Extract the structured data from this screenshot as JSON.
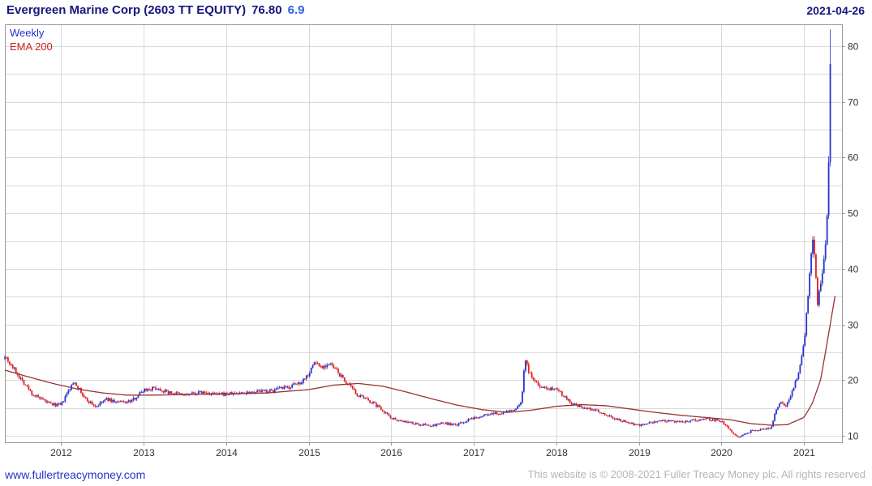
{
  "header": {
    "name": "Evergreen Marine Corp (2603 TT EQUITY)",
    "price": "76.80",
    "change": "6.9",
    "date": "2021-04-26"
  },
  "legend": {
    "frequency": "Weekly",
    "overlay": "EMA 200"
  },
  "footer": {
    "link": "www.fullertreacymoney.com",
    "copyright": "This website is © 2008-2021 Fuller Treacy Money plc. All rights reserved"
  },
  "colors": {
    "title": "#16167e",
    "change": "#2f5fe0",
    "up": "#2633cc",
    "down": "#e01f1f",
    "ema": "#993333",
    "grid": "#d9d9d9",
    "border": "#9a9a9a",
    "axis_text": "#333333",
    "link": "#2233cc",
    "copyright": "#b5b5b5"
  },
  "chart_data": {
    "type": "candlestick",
    "title": "Evergreen Marine Corp (2603 TT EQUITY)",
    "frequency": "Weekly",
    "overlay": "EMA 200",
    "last_price": 76.8,
    "change": 6.9,
    "as_of": "2021-04-26",
    "x_ticks": [
      2012,
      2013,
      2014,
      2015,
      2016,
      2017,
      2018,
      2019,
      2020,
      2021
    ],
    "y_ticks": [
      10,
      20,
      30,
      40,
      50,
      60,
      70,
      80
    ],
    "grid_step": 5,
    "x_range": [
      2011.318,
      2021.46
    ],
    "y_axis_side": "right",
    "high_watermark": 83,
    "low_watermark": 9.5,
    "weekly_close_keyframes": [
      [
        2011.318,
        24.5
      ],
      [
        2011.38,
        23.0
      ],
      [
        2011.5,
        20.5
      ],
      [
        2011.65,
        17.5
      ],
      [
        2011.78,
        16.3
      ],
      [
        2011.9,
        15.6
      ],
      [
        2012.0,
        15.5
      ],
      [
        2012.08,
        17.8
      ],
      [
        2012.16,
        19.8
      ],
      [
        2012.28,
        16.8
      ],
      [
        2012.42,
        15.2
      ],
      [
        2012.55,
        16.6
      ],
      [
        2012.68,
        16.0
      ],
      [
        2012.85,
        16.2
      ],
      [
        2013.0,
        18.3
      ],
      [
        2013.15,
        18.6
      ],
      [
        2013.3,
        17.8
      ],
      [
        2013.5,
        17.3
      ],
      [
        2013.7,
        17.8
      ],
      [
        2013.9,
        17.4
      ],
      [
        2014.1,
        17.6
      ],
      [
        2014.3,
        17.9
      ],
      [
        2014.55,
        18.1
      ],
      [
        2014.75,
        18.7
      ],
      [
        2014.9,
        19.6
      ],
      [
        2015.0,
        21.2
      ],
      [
        2015.07,
        23.3
      ],
      [
        2015.15,
        22.4
      ],
      [
        2015.25,
        22.9
      ],
      [
        2015.33,
        21.8
      ],
      [
        2015.45,
        19.6
      ],
      [
        2015.6,
        17.2
      ],
      [
        2015.75,
        16.2
      ],
      [
        2015.9,
        14.6
      ],
      [
        2016.0,
        13.2
      ],
      [
        2016.15,
        12.6
      ],
      [
        2016.3,
        12.1
      ],
      [
        2016.5,
        11.8
      ],
      [
        2016.62,
        12.3
      ],
      [
        2016.78,
        11.9
      ],
      [
        2016.95,
        12.9
      ],
      [
        2017.1,
        13.7
      ],
      [
        2017.25,
        13.9
      ],
      [
        2017.4,
        14.3
      ],
      [
        2017.52,
        14.9
      ],
      [
        2017.58,
        16.5
      ],
      [
        2017.62,
        24.2
      ],
      [
        2017.67,
        21.3
      ],
      [
        2017.73,
        19.8
      ],
      [
        2017.82,
        18.8
      ],
      [
        2017.92,
        18.5
      ],
      [
        2018.0,
        18.7
      ],
      [
        2018.08,
        17.3
      ],
      [
        2018.2,
        15.6
      ],
      [
        2018.35,
        14.9
      ],
      [
        2018.5,
        14.6
      ],
      [
        2018.62,
        13.6
      ],
      [
        2018.75,
        12.9
      ],
      [
        2018.9,
        12.3
      ],
      [
        2019.0,
        11.9
      ],
      [
        2019.15,
        12.3
      ],
      [
        2019.3,
        12.7
      ],
      [
        2019.5,
        12.4
      ],
      [
        2019.65,
        12.8
      ],
      [
        2019.8,
        13.1
      ],
      [
        2019.95,
        12.8
      ],
      [
        2020.05,
        12.1
      ],
      [
        2020.16,
        10.2
      ],
      [
        2020.22,
        9.8
      ],
      [
        2020.35,
        10.8
      ],
      [
        2020.5,
        11.2
      ],
      [
        2020.6,
        11.5
      ],
      [
        2020.66,
        14.6
      ],
      [
        2020.72,
        15.9
      ],
      [
        2020.78,
        15.3
      ],
      [
        2020.85,
        17.6
      ],
      [
        2020.92,
        20.6
      ],
      [
        2021.0,
        26.5
      ],
      [
        2021.04,
        33.5
      ],
      [
        2021.08,
        41.5
      ],
      [
        2021.11,
        46.0
      ],
      [
        2021.14,
        39.0
      ],
      [
        2021.165,
        33.5
      ],
      [
        2021.19,
        36.5
      ],
      [
        2021.22,
        39.0
      ],
      [
        2021.25,
        42.5
      ],
      [
        2021.28,
        49.0
      ],
      [
        2021.3,
        60.0
      ],
      [
        2021.318,
        76.8
      ]
    ],
    "ema200_keyframes": [
      [
        2011.318,
        21.8
      ],
      [
        2011.6,
        20.6
      ],
      [
        2011.9,
        19.4
      ],
      [
        2012.2,
        18.4
      ],
      [
        2012.5,
        17.7
      ],
      [
        2012.8,
        17.3
      ],
      [
        2013.1,
        17.3
      ],
      [
        2013.5,
        17.4
      ],
      [
        2014.0,
        17.5
      ],
      [
        2014.5,
        17.7
      ],
      [
        2015.0,
        18.3
      ],
      [
        2015.3,
        19.1
      ],
      [
        2015.6,
        19.4
      ],
      [
        2015.9,
        18.9
      ],
      [
        2016.2,
        17.8
      ],
      [
        2016.5,
        16.6
      ],
      [
        2016.8,
        15.5
      ],
      [
        2017.1,
        14.7
      ],
      [
        2017.4,
        14.2
      ],
      [
        2017.7,
        14.6
      ],
      [
        2018.0,
        15.3
      ],
      [
        2018.3,
        15.6
      ],
      [
        2018.6,
        15.4
      ],
      [
        2018.9,
        14.8
      ],
      [
        2019.2,
        14.2
      ],
      [
        2019.5,
        13.7
      ],
      [
        2019.8,
        13.3
      ],
      [
        2020.1,
        12.9
      ],
      [
        2020.35,
        12.2
      ],
      [
        2020.6,
        11.9
      ],
      [
        2020.8,
        12.0
      ],
      [
        2021.0,
        13.3
      ],
      [
        2021.1,
        15.8
      ],
      [
        2021.2,
        20.0
      ],
      [
        2021.26,
        25.0
      ],
      [
        2021.38,
        35.5
      ]
    ]
  }
}
